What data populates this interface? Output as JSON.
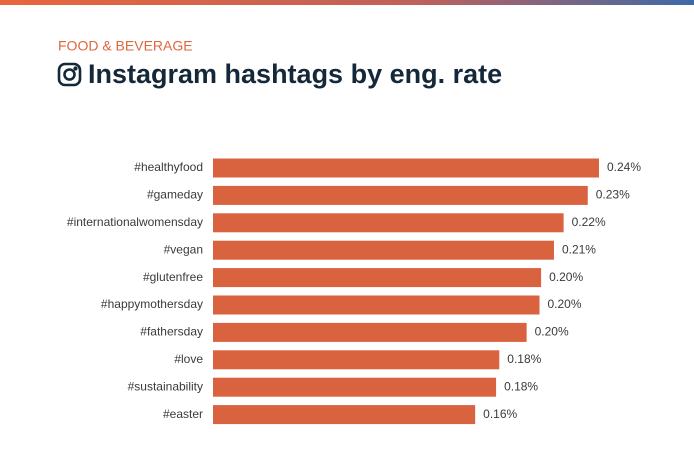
{
  "chart_data": {
    "type": "bar",
    "orientation": "horizontal",
    "subtitle": "FOOD & BEVERAGE",
    "title": "Instagram hashtags by eng. rate",
    "color": "#d9623f",
    "categories": [
      "#healthyfood",
      "#gameday",
      "#internationalwomensday",
      "#vegan",
      "#glutenfree",
      "#happymothersday",
      "#fathersday",
      "#love",
      "#sustainability",
      "#easter"
    ],
    "values": [
      0.24,
      0.233,
      0.218,
      0.212,
      0.204,
      0.203,
      0.195,
      0.178,
      0.176,
      0.163
    ],
    "value_labels": [
      "0.24%",
      "0.23%",
      "0.22%",
      "0.21%",
      "0.20%",
      "0.20%",
      "0.20%",
      "0.18%",
      "0.18%",
      "0.16%"
    ]
  }
}
